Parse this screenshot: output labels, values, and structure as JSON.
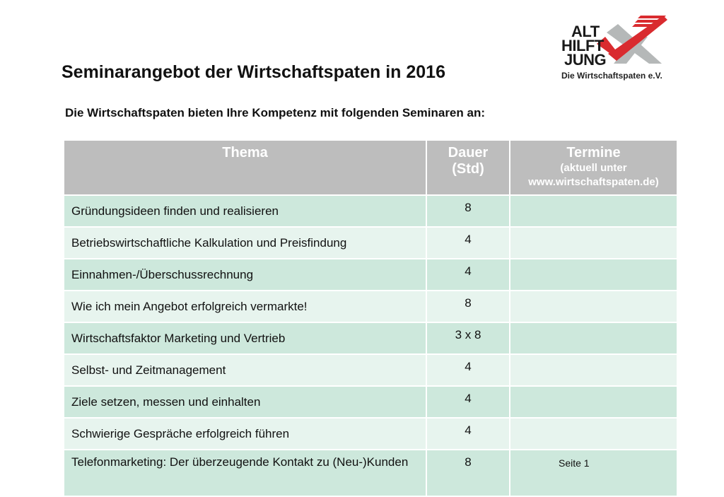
{
  "logo": {
    "lines": [
      "ALT",
      "HILFT",
      "JUNG"
    ],
    "subtitle": "Die Wirtschaftspaten e.V.",
    "colors": {
      "check": "#d92b2f",
      "x_mark": "#b5b8b8",
      "text": "#1a1a1a"
    }
  },
  "title": "Seminarangebot der Wirtschaftspaten in 2016",
  "subtitle": "Die Wirtschaftspaten bieten Ihre Kompetenz mit folgenden Seminaren an:",
  "table": {
    "headers": {
      "thema": "Thema",
      "dauer_line1": "Dauer",
      "dauer_line2": "(Std)",
      "termine": "Termine",
      "termine_note_line1": "(aktuell unter",
      "termine_note_line2": "www.wirtschaftspaten.de)"
    },
    "rows": [
      {
        "thema": "Gründungsideen finden und realisieren",
        "dauer": "8",
        "termine": ""
      },
      {
        "thema": "Betriebswirtschaftliche Kalkulation und Preisfindung",
        "dauer": "4",
        "termine": ""
      },
      {
        "thema": "Einnahmen-/Überschussrechnung",
        "dauer": "4",
        "termine": ""
      },
      {
        "thema": "Wie ich mein Angebot erfolgreich vermarkte!",
        "dauer": "8",
        "termine": ""
      },
      {
        "thema": "Wirtschaftsfaktor Marketing und Vertrieb",
        "dauer": "3 x 8",
        "termine": ""
      },
      {
        "thema": "Selbst- und Zeitmanagement",
        "dauer": "4",
        "termine": ""
      },
      {
        "thema": "Ziele setzen, messen und einhalten",
        "dauer": "4",
        "termine": ""
      },
      {
        "thema": "Schwierige Gespräche erfolgreich führen",
        "dauer": "4",
        "termine": ""
      },
      {
        "thema": "Telefonmarketing: Der überzeugende Kontakt zu (Neu-)Kunden",
        "dauer": "8",
        "termine": ""
      }
    ],
    "colors": {
      "header_bg": "#bdbdbd",
      "row_dark": "#cde8dc",
      "row_light": "#e7f4ee"
    }
  },
  "footer": {
    "page": "Seite 1"
  }
}
